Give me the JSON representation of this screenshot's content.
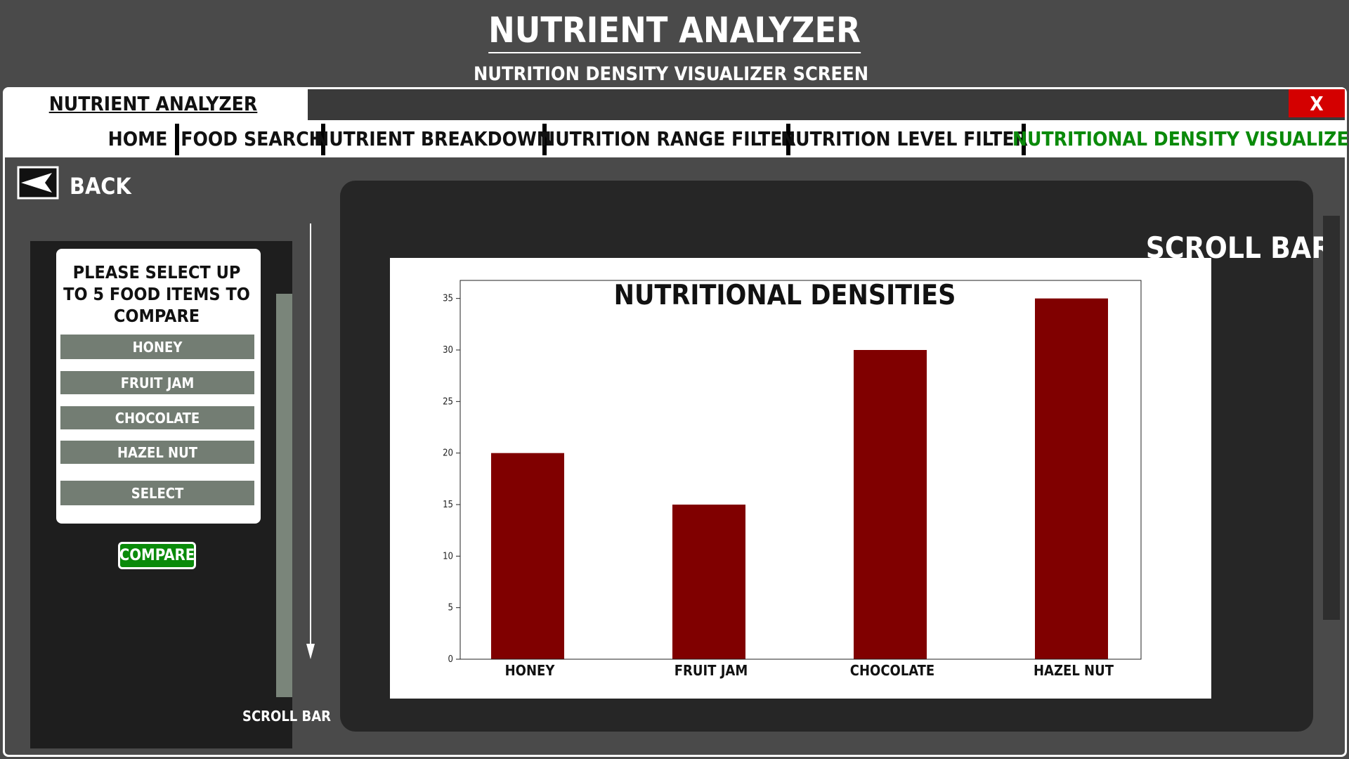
{
  "header": {
    "title": "NUTRIENT ANALYZER",
    "subtitle": "NUTRITION DENSITY VISUALIZER SCREEN"
  },
  "window": {
    "tab_title": "NUTRIENT ANALYZER",
    "close": "X"
  },
  "nav": [
    "HOME",
    "FOOD SEARCH",
    "NUTRIENT BREAKDOWN",
    "NUTRITION RANGE FILTER",
    "NUTRITION LEVEL FILTER",
    "NUTRITIONAL DENSITY VISUALIZER"
  ],
  "back": "BACK",
  "selector": {
    "prompt": "PLEASE SELECT UP TO 5 FOOD ITEMS TO COMPARE",
    "items": [
      "HONEY",
      "FRUIT JAM",
      "CHOCOLATE",
      "HAZEL NUT"
    ],
    "select": "SELECT",
    "compare": "COMPARE",
    "scroll_label": "SCROLL BAR"
  },
  "scroll_label": "SCROLL BAR",
  "chart_data": {
    "type": "bar",
    "title": "NUTRITIONAL DENSITIES",
    "categories": [
      "HONEY",
      "FRUIT JAM",
      "CHOCOLATE",
      "HAZEL NUT"
    ],
    "values": [
      20,
      15,
      30,
      35
    ],
    "color": "#800000",
    "ylim": [
      0,
      36.75
    ],
    "yticks": [
      0,
      5,
      10,
      15,
      20,
      25,
      30,
      35
    ]
  }
}
